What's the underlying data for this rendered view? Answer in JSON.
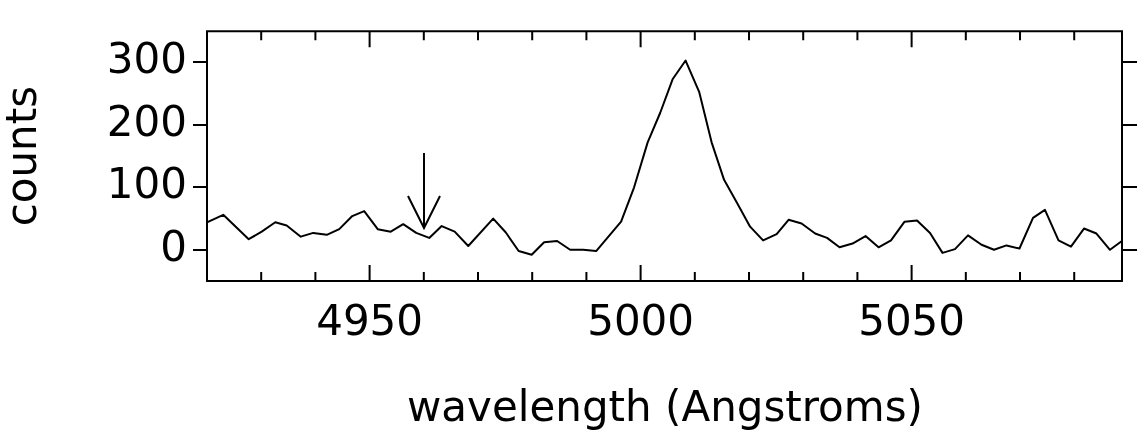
{
  "chart_data": {
    "type": "line",
    "xlabel": "wavelength (Angstroms)",
    "ylabel": "counts",
    "x": [
      4920,
      4923.0,
      4927.7,
      4930.1,
      4932.6,
      4934.7,
      4937.3,
      4939.6,
      4942.1,
      4944.4,
      4946.8,
      4949.0,
      4951.5,
      4953.9,
      4956.2,
      4958.6,
      4961.0,
      4963.3,
      4965.7,
      4968.2,
      4972.8,
      4975.1,
      4977.5,
      4979.9,
      4982.2,
      4984.6,
      4987.0,
      4989.4,
      4991.8,
      4996.4,
      4998.8,
      5001.3,
      5003.6,
      5005.9,
      5008.3,
      5010.8,
      5013.1,
      5015.4,
      5017.8,
      5020.2,
      5022.6,
      5025.1,
      5027.3,
      5029.7,
      5032.2,
      5034.4,
      5036.7,
      5039.1,
      5041.5,
      5043.9,
      5046.2,
      5048.7,
      5051.0,
      5053.4,
      5055.7,
      5058.0,
      5060.4,
      5062.9,
      5065.2,
      5067.5,
      5069.9,
      5072.4,
      5074.6,
      5077.1,
      5079.4,
      5081.8,
      5084.1,
      5086.6,
      5088.8
    ],
    "series": [
      {
        "color": "#000000",
        "values": [
          44,
          56,
          17,
          29,
          44,
          39,
          21,
          27,
          24,
          33,
          54,
          62,
          33,
          29,
          41,
          27,
          19,
          38,
          29,
          6,
          50,
          28,
          -2,
          -8,
          12,
          14,
          0,
          0,
          -2,
          45,
          100,
          172,
          219,
          273,
          303,
          253,
          172,
          112,
          75,
          37,
          15,
          25,
          48,
          42,
          26,
          19,
          4,
          10,
          22,
          4,
          15,
          45,
          47,
          27,
          -5,
          1,
          23,
          8,
          0,
          7,
          2,
          51,
          64,
          15,
          5,
          34,
          26,
          0,
          14
        ]
      }
    ],
    "xlim": [
      4920,
      5089
    ],
    "xticks": [
      {
        "value": 4930,
        "label": null
      },
      {
        "value": 4940,
        "label": null
      },
      4950,
      {
        "value": 4960,
        "label": null
      },
      {
        "value": 4970,
        "label": null
      },
      {
        "value": 4980,
        "label": null
      },
      {
        "value": 4990,
        "label": null
      },
      5000,
      {
        "value": 5010,
        "label": null
      },
      {
        "value": 5020,
        "label": null
      },
      {
        "value": 5030,
        "label": null
      },
      {
        "value": 5040,
        "label": null
      },
      5050,
      {
        "value": 5060,
        "label": null
      },
      {
        "value": 5070,
        "label": null
      },
      {
        "value": 5080,
        "label": null
      }
    ],
    "ylim": [
      -50,
      350
    ],
    "yticks": [
      0,
      100,
      200,
      300
    ],
    "marker": "none",
    "line_style": "solid",
    "legend": false
  }
}
